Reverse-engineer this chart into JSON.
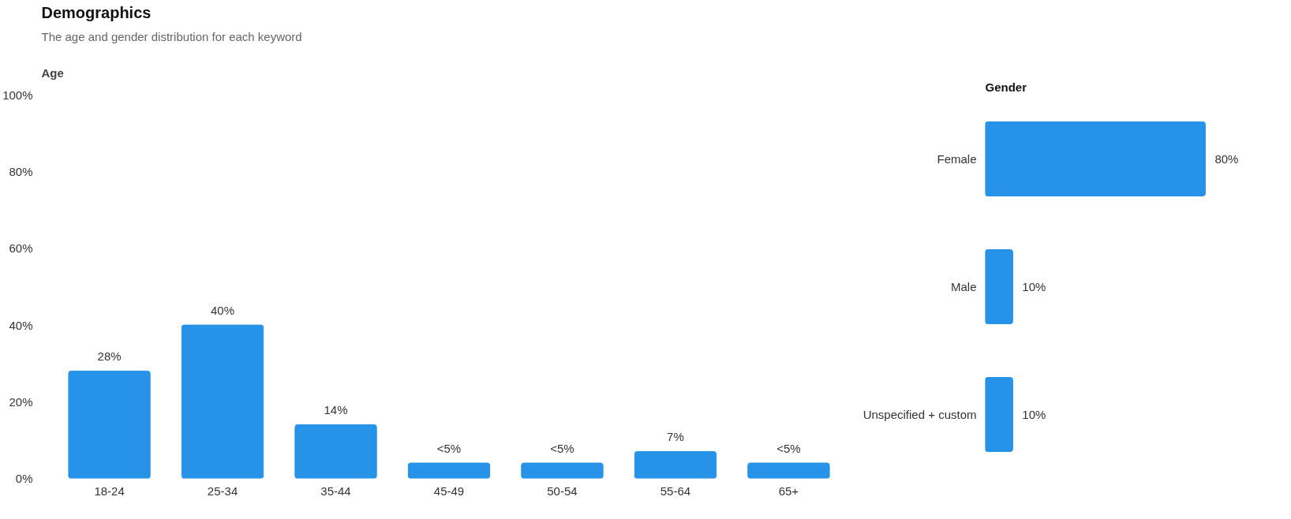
{
  "chart_data": [
    {
      "type": "bar",
      "title": "Demographics",
      "subtitle": "The age and gender distribution for each keyword",
      "annotations": [
        "Age"
      ],
      "categories": [
        "18-24",
        "25-34",
        "35-44",
        "45-49",
        "50-54",
        "55-64",
        "65+"
      ],
      "values": [
        28,
        40,
        14,
        4,
        4,
        7,
        4
      ],
      "value_labels": [
        "28%",
        "40%",
        "14%",
        "<5%",
        "<5%",
        "7%",
        "<5%"
      ],
      "color": "#2693e8",
      "ylim": [
        0,
        100
      ],
      "yticks": [
        {
          "value": 0,
          "label": "0%"
        },
        {
          "value": 20,
          "label": "20%"
        },
        {
          "value": 40,
          "label": "40%"
        },
        {
          "value": 60,
          "label": "60%"
        },
        {
          "value": 80,
          "label": "80%"
        },
        {
          "value": 100,
          "label": "100%"
        }
      ],
      "grid": false
    },
    {
      "type": "bar",
      "orientation": "horizontal",
      "title": "Gender",
      "categories": [
        "Female",
        "Male",
        "Unspecified + custom"
      ],
      "values": [
        80,
        10,
        10
      ],
      "value_labels": [
        "80%",
        "10%",
        "10%"
      ],
      "color": "#2693e8",
      "tick_labels": "y",
      "grid": false
    }
  ]
}
